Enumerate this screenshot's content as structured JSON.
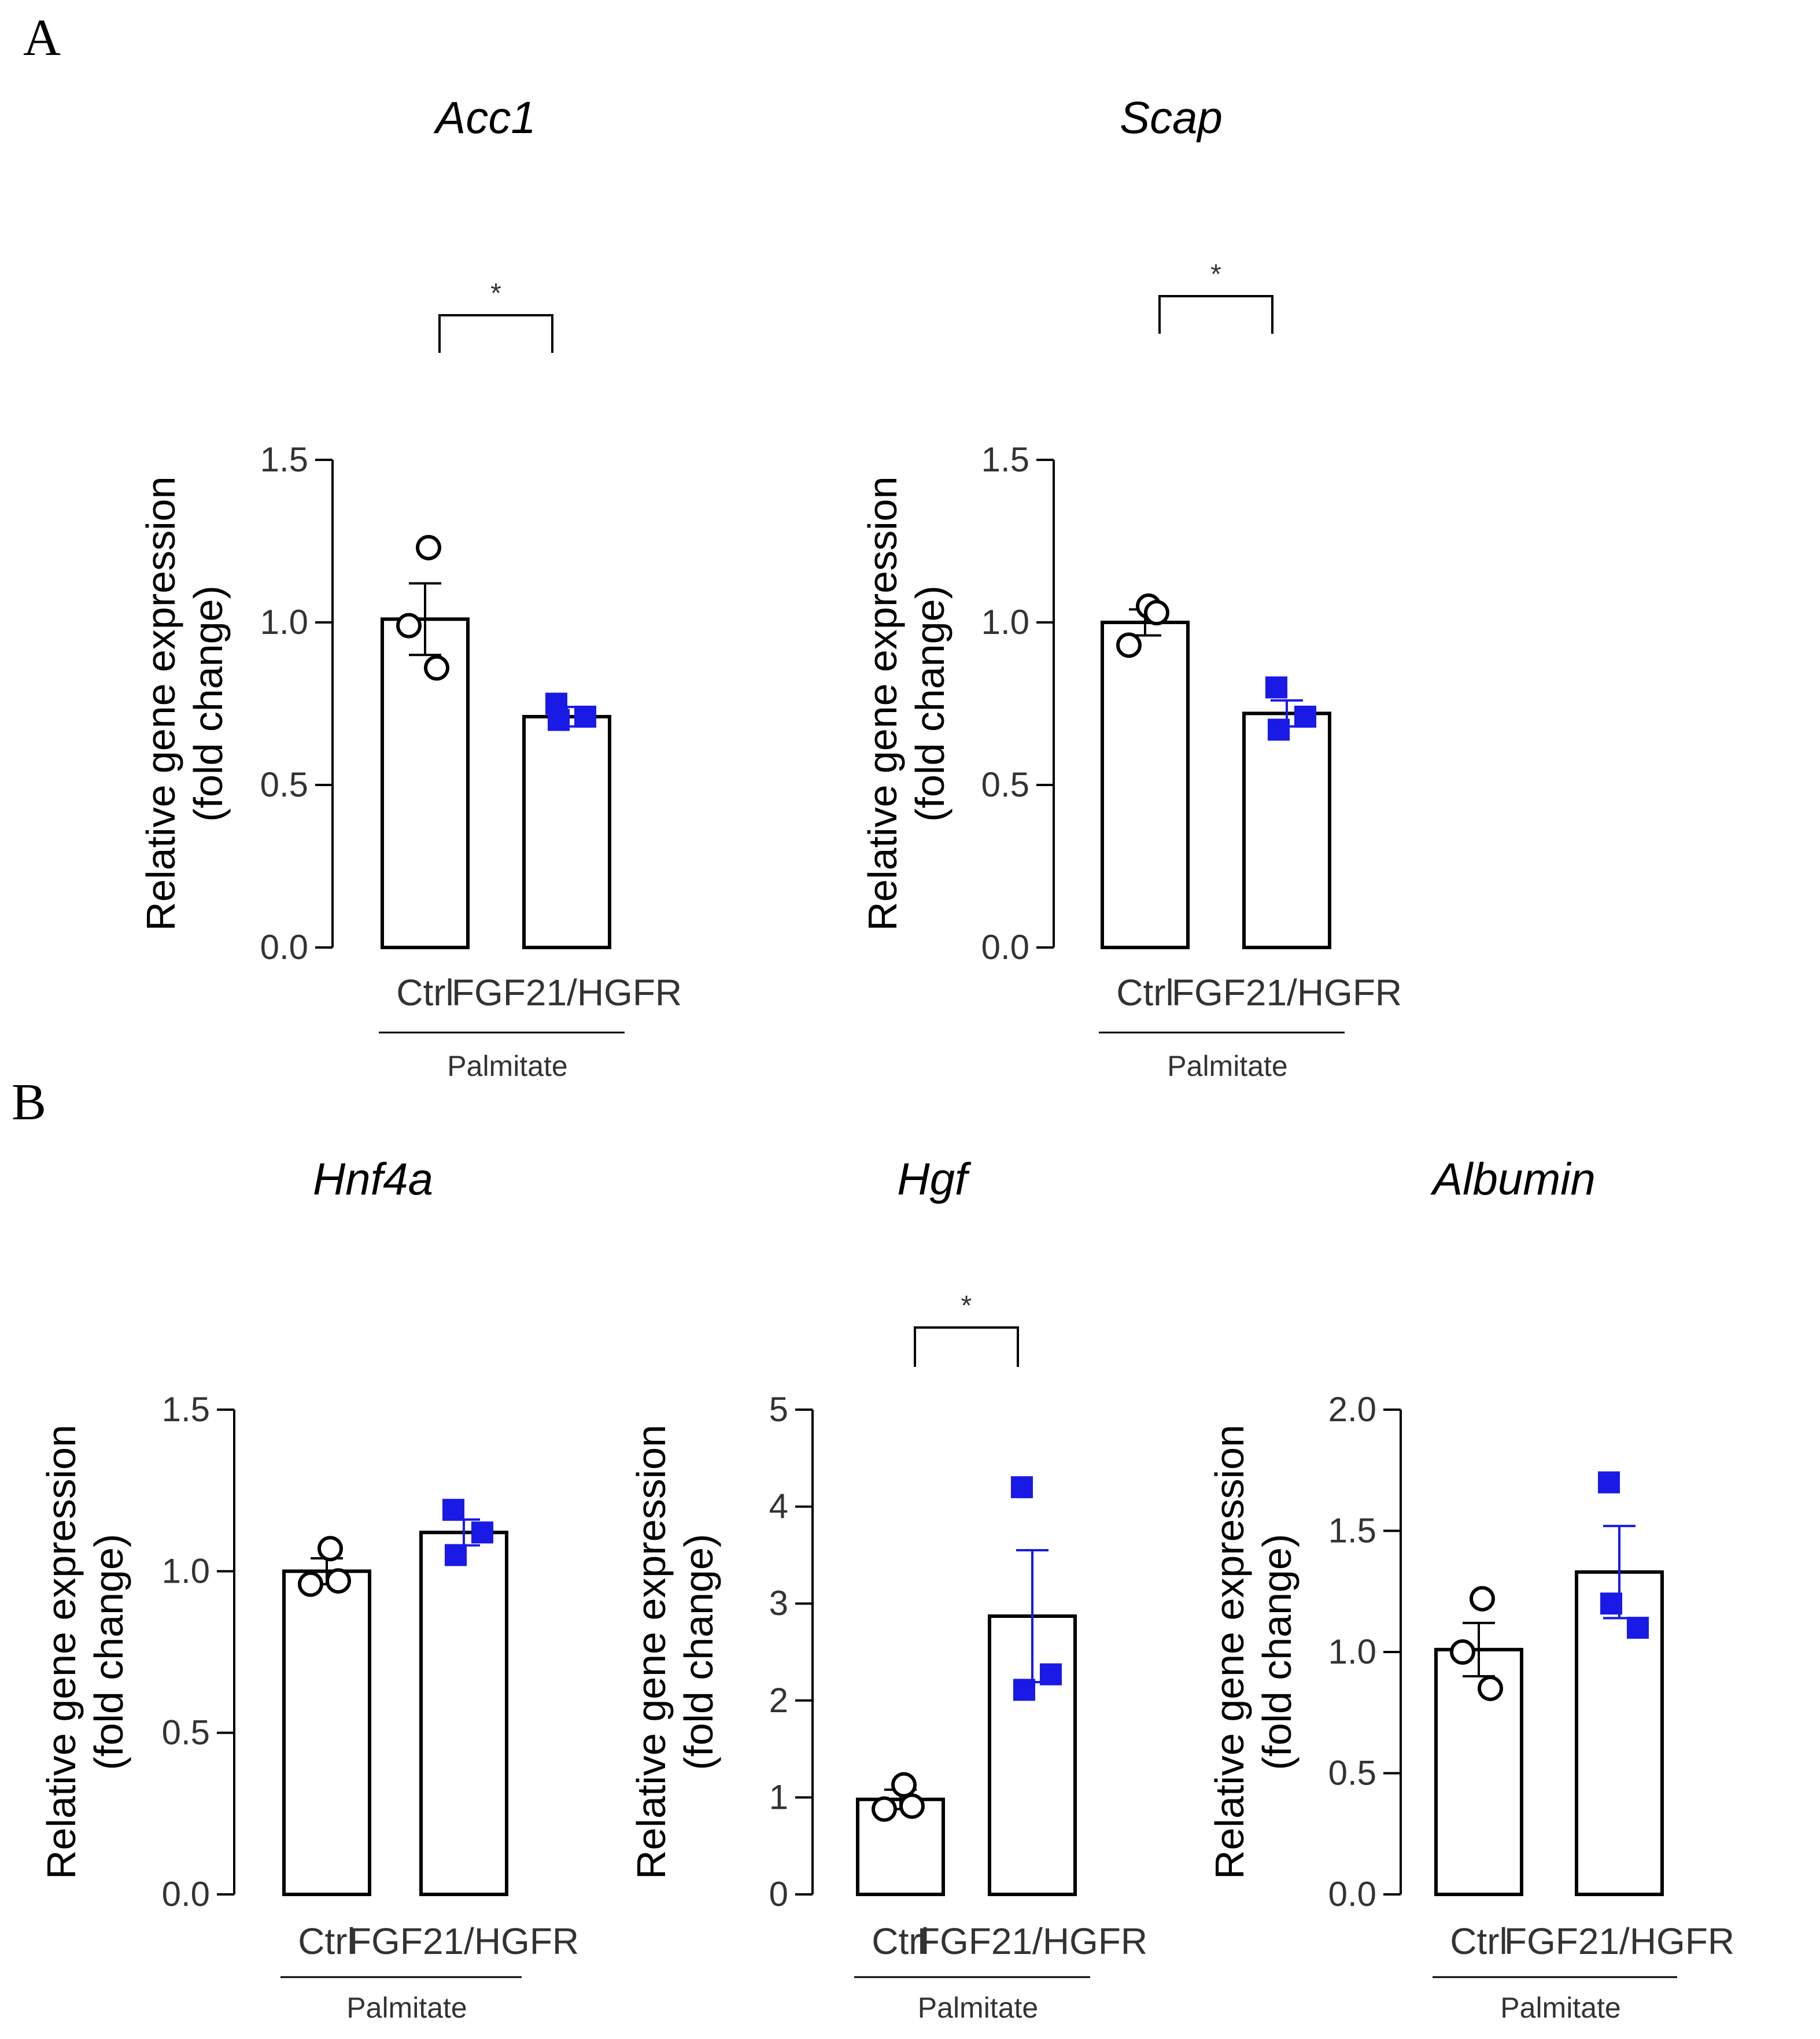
{
  "figure": {
    "panel_letters": [
      "A",
      "B"
    ]
  },
  "chart_data": [
    {
      "type": "bar",
      "panel": "A",
      "title": "Acc1",
      "ylabel": [
        "Relative gene expression",
        "(fold change)"
      ],
      "categories": [
        "Ctrl",
        "FGF21/HGFR"
      ],
      "group_label": "Palmitate",
      "ylim": [
        0,
        1.5
      ],
      "yticks": [
        0,
        0.5,
        1.0,
        1.5
      ],
      "ytick_labels": [
        "0.0",
        "0.5",
        "1.0",
        "1.5"
      ],
      "values": [
        1.01,
        0.71
      ],
      "errors": [
        0.11,
        0.03
      ],
      "points": [
        [
          1.23,
          0.99,
          0.86
        ],
        [
          0.75,
          0.7,
          0.71
        ]
      ],
      "markers": [
        "open-circle",
        "filled-square"
      ],
      "colors": {
        "bar_fill": "#ffffff",
        "bar_stroke": "#000000",
        "ctrl_marker": "#000000",
        "treat_marker": "#1a1ae6",
        "treat_error": "#1a1ae6"
      },
      "significance": "*"
    },
    {
      "type": "bar",
      "panel": "A",
      "title": "Scap",
      "ylabel": [
        "Relative gene expression",
        "(fold change)"
      ],
      "categories": [
        "Ctrl",
        "FGF21/HGFR"
      ],
      "group_label": "Palmitate",
      "ylim": [
        0,
        1.5
      ],
      "yticks": [
        0,
        0.5,
        1.0,
        1.5
      ],
      "ytick_labels": [
        "0.0",
        "0.5",
        "1.0",
        "1.5"
      ],
      "values": [
        1.0,
        0.72
      ],
      "errors": [
        0.04,
        0.04
      ],
      "points": [
        [
          1.05,
          0.93,
          1.03
        ],
        [
          0.8,
          0.67,
          0.71
        ]
      ],
      "markers": [
        "open-circle",
        "filled-square"
      ],
      "colors": {
        "bar_fill": "#ffffff",
        "bar_stroke": "#000000",
        "ctrl_marker": "#000000",
        "treat_marker": "#1a1ae6",
        "treat_error": "#1a1ae6"
      },
      "significance": "*"
    },
    {
      "type": "bar",
      "panel": "B",
      "title": "Hnf4a",
      "ylabel": [
        "Relative gene expression",
        "(fold change)"
      ],
      "categories": [
        "Ctrl",
        "FGF21/HGFR"
      ],
      "group_label": "Palmitate",
      "ylim": [
        0,
        1.5
      ],
      "yticks": [
        0,
        0.5,
        1.0,
        1.5
      ],
      "ytick_labels": [
        "0.0",
        "0.5",
        "1.0",
        "1.5"
      ],
      "values": [
        1.0,
        1.12
      ],
      "errors": [
        0.04,
        0.04
      ],
      "points": [
        [
          1.07,
          0.96,
          0.97
        ],
        [
          1.19,
          1.05,
          1.12
        ]
      ],
      "markers": [
        "open-circle",
        "filled-square"
      ],
      "colors": {
        "bar_fill": "#ffffff",
        "bar_stroke": "#000000",
        "ctrl_marker": "#000000",
        "treat_marker": "#1a1ae6",
        "treat_error": "#1a1ae6"
      },
      "significance": ""
    },
    {
      "type": "bar",
      "panel": "B",
      "title": "Hgf",
      "ylabel": [
        "Relative gene expression",
        "(fold change)"
      ],
      "categories": [
        "Ctrl",
        "FGF21/HGFR"
      ],
      "group_label": "Palmitate",
      "ylim": [
        0,
        5
      ],
      "yticks": [
        0,
        1,
        2,
        3,
        4,
        5
      ],
      "ytick_labels": [
        "0",
        "1",
        "2",
        "3",
        "4",
        "5"
      ],
      "values": [
        0.98,
        2.87
      ],
      "errors": [
        0.1,
        0.68
      ],
      "points": [
        [
          1.13,
          0.88,
          0.91
        ],
        [
          4.2,
          2.11,
          2.27
        ]
      ],
      "markers": [
        "open-circle",
        "filled-square"
      ],
      "colors": {
        "bar_fill": "#ffffff",
        "bar_stroke": "#000000",
        "ctrl_marker": "#000000",
        "treat_marker": "#1a1ae6",
        "treat_error": "#1a1ae6"
      },
      "significance": "*"
    },
    {
      "type": "bar",
      "panel": "B",
      "title": "Albumin",
      "ylabel": [
        "Relative gene expression",
        "(fold change)"
      ],
      "categories": [
        "Ctrl",
        "FGF21/HGFR"
      ],
      "group_label": "Palmitate",
      "ylim": [
        0,
        2.0
      ],
      "yticks": [
        0,
        0.5,
        1.0,
        1.5,
        2.0
      ],
      "ytick_labels": [
        "0.0",
        "0.5",
        "1.0",
        "1.5",
        "2.0"
      ],
      "values": [
        1.01,
        1.33
      ],
      "errors": [
        0.11,
        0.19
      ],
      "points": [
        [
          1.22,
          1.0,
          0.85
        ],
        [
          1.7,
          1.2,
          1.1
        ]
      ],
      "markers": [
        "open-circle",
        "filled-square"
      ],
      "colors": {
        "bar_fill": "#ffffff",
        "bar_stroke": "#000000",
        "ctrl_marker": "#000000",
        "treat_marker": "#1a1ae6",
        "treat_error": "#1a1ae6"
      },
      "significance": ""
    }
  ]
}
